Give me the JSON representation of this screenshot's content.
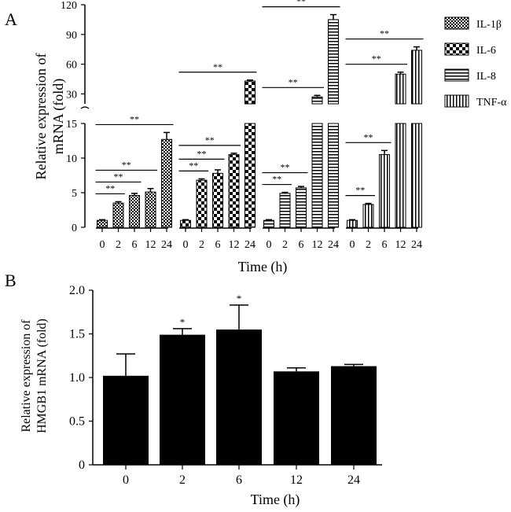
{
  "panel_labels": {
    "a": "A",
    "b": "B"
  },
  "colors": {
    "ink": "#000000",
    "bar_fill_b": "#000000",
    "background": "#ffffff"
  },
  "chart_data": [
    {
      "id": "A",
      "type": "bar",
      "title": "",
      "xlabel": "Time (h)",
      "ylabel_line1": "Relative expression of",
      "ylabel_line2": "mRNA (fold)",
      "categories": [
        "0",
        "2",
        "6",
        "12",
        "24"
      ],
      "axis_break": {
        "lower_range": [
          0,
          15
        ],
        "upper_range": [
          20,
          120
        ]
      },
      "lower_ticks": [
        0,
        5,
        10,
        15
      ],
      "upper_ticks": [
        30,
        60,
        90,
        120
      ],
      "legend": [
        {
          "name": "IL-1β",
          "pattern": "checker-fine"
        },
        {
          "name": "IL-6",
          "pattern": "checker"
        },
        {
          "name": "IL-8",
          "pattern": "hstripe"
        },
        {
          "name": "TNF-α",
          "pattern": "vstripe"
        }
      ],
      "series": [
        {
          "name": "IL-1β",
          "pattern": "checker-fine",
          "values": [
            1.0,
            3.5,
            4.6,
            5.1,
            12.7
          ],
          "errors": [
            0.1,
            0.2,
            0.3,
            0.5,
            1.0
          ],
          "brackets": [
            {
              "from": 0,
              "to": 1,
              "label": "**"
            },
            {
              "from": 0,
              "to": 2,
              "label": "**"
            },
            {
              "from": 0,
              "to": 3,
              "label": "**"
            },
            {
              "from": 0,
              "to": 4,
              "label": "**"
            }
          ]
        },
        {
          "name": "IL-6",
          "pattern": "checker",
          "values": [
            1.0,
            6.8,
            7.8,
            10.5,
            43
          ],
          "errors": [
            0.1,
            0.2,
            0.5,
            0.2,
            1.0
          ],
          "brackets": [
            {
              "from": 0,
              "to": 1,
              "label": "**"
            },
            {
              "from": 0,
              "to": 2,
              "label": "**"
            },
            {
              "from": 0,
              "to": 3,
              "label": "**"
            },
            {
              "from": 0,
              "to": 4,
              "label": "**"
            }
          ]
        },
        {
          "name": "IL-8",
          "pattern": "hstripe",
          "values": [
            1.0,
            4.9,
            5.7,
            27,
            105
          ],
          "errors": [
            0.1,
            0.15,
            0.2,
            1.5,
            5.0
          ],
          "brackets": [
            {
              "from": 0,
              "to": 1,
              "label": "**"
            },
            {
              "from": 0,
              "to": 2,
              "label": "**"
            },
            {
              "from": 0,
              "to": 3,
              "label": "**"
            },
            {
              "from": 0,
              "to": 4,
              "label": "**"
            }
          ]
        },
        {
          "name": "TNF-α",
          "pattern": "vstripe",
          "values": [
            1.0,
            3.3,
            10.5,
            50,
            74
          ],
          "errors": [
            0.1,
            0.15,
            0.6,
            2.0,
            3.5
          ],
          "brackets": [
            {
              "from": 0,
              "to": 1,
              "label": "**"
            },
            {
              "from": 0,
              "to": 2,
              "label": "**"
            },
            {
              "from": 0,
              "to": 3,
              "label": "**"
            },
            {
              "from": 0,
              "to": 4,
              "label": "**"
            }
          ]
        }
      ]
    },
    {
      "id": "B",
      "type": "bar",
      "title": "",
      "xlabel": "Time (h)",
      "ylabel_line1": "Relative expression of",
      "ylabel_line2": "HMGB1 mRNA (fold)",
      "categories": [
        "0",
        "2",
        "6",
        "12",
        "24"
      ],
      "values": [
        1.02,
        1.49,
        1.55,
        1.07,
        1.13
      ],
      "errors": [
        0.25,
        0.07,
        0.28,
        0.04,
        0.02
      ],
      "significance": [
        "",
        "*",
        "*",
        "",
        ""
      ],
      "ylim": [
        0,
        2.0
      ],
      "yticks": [
        "0",
        "0.5",
        "1.0",
        "1.5",
        "2.0"
      ]
    }
  ]
}
